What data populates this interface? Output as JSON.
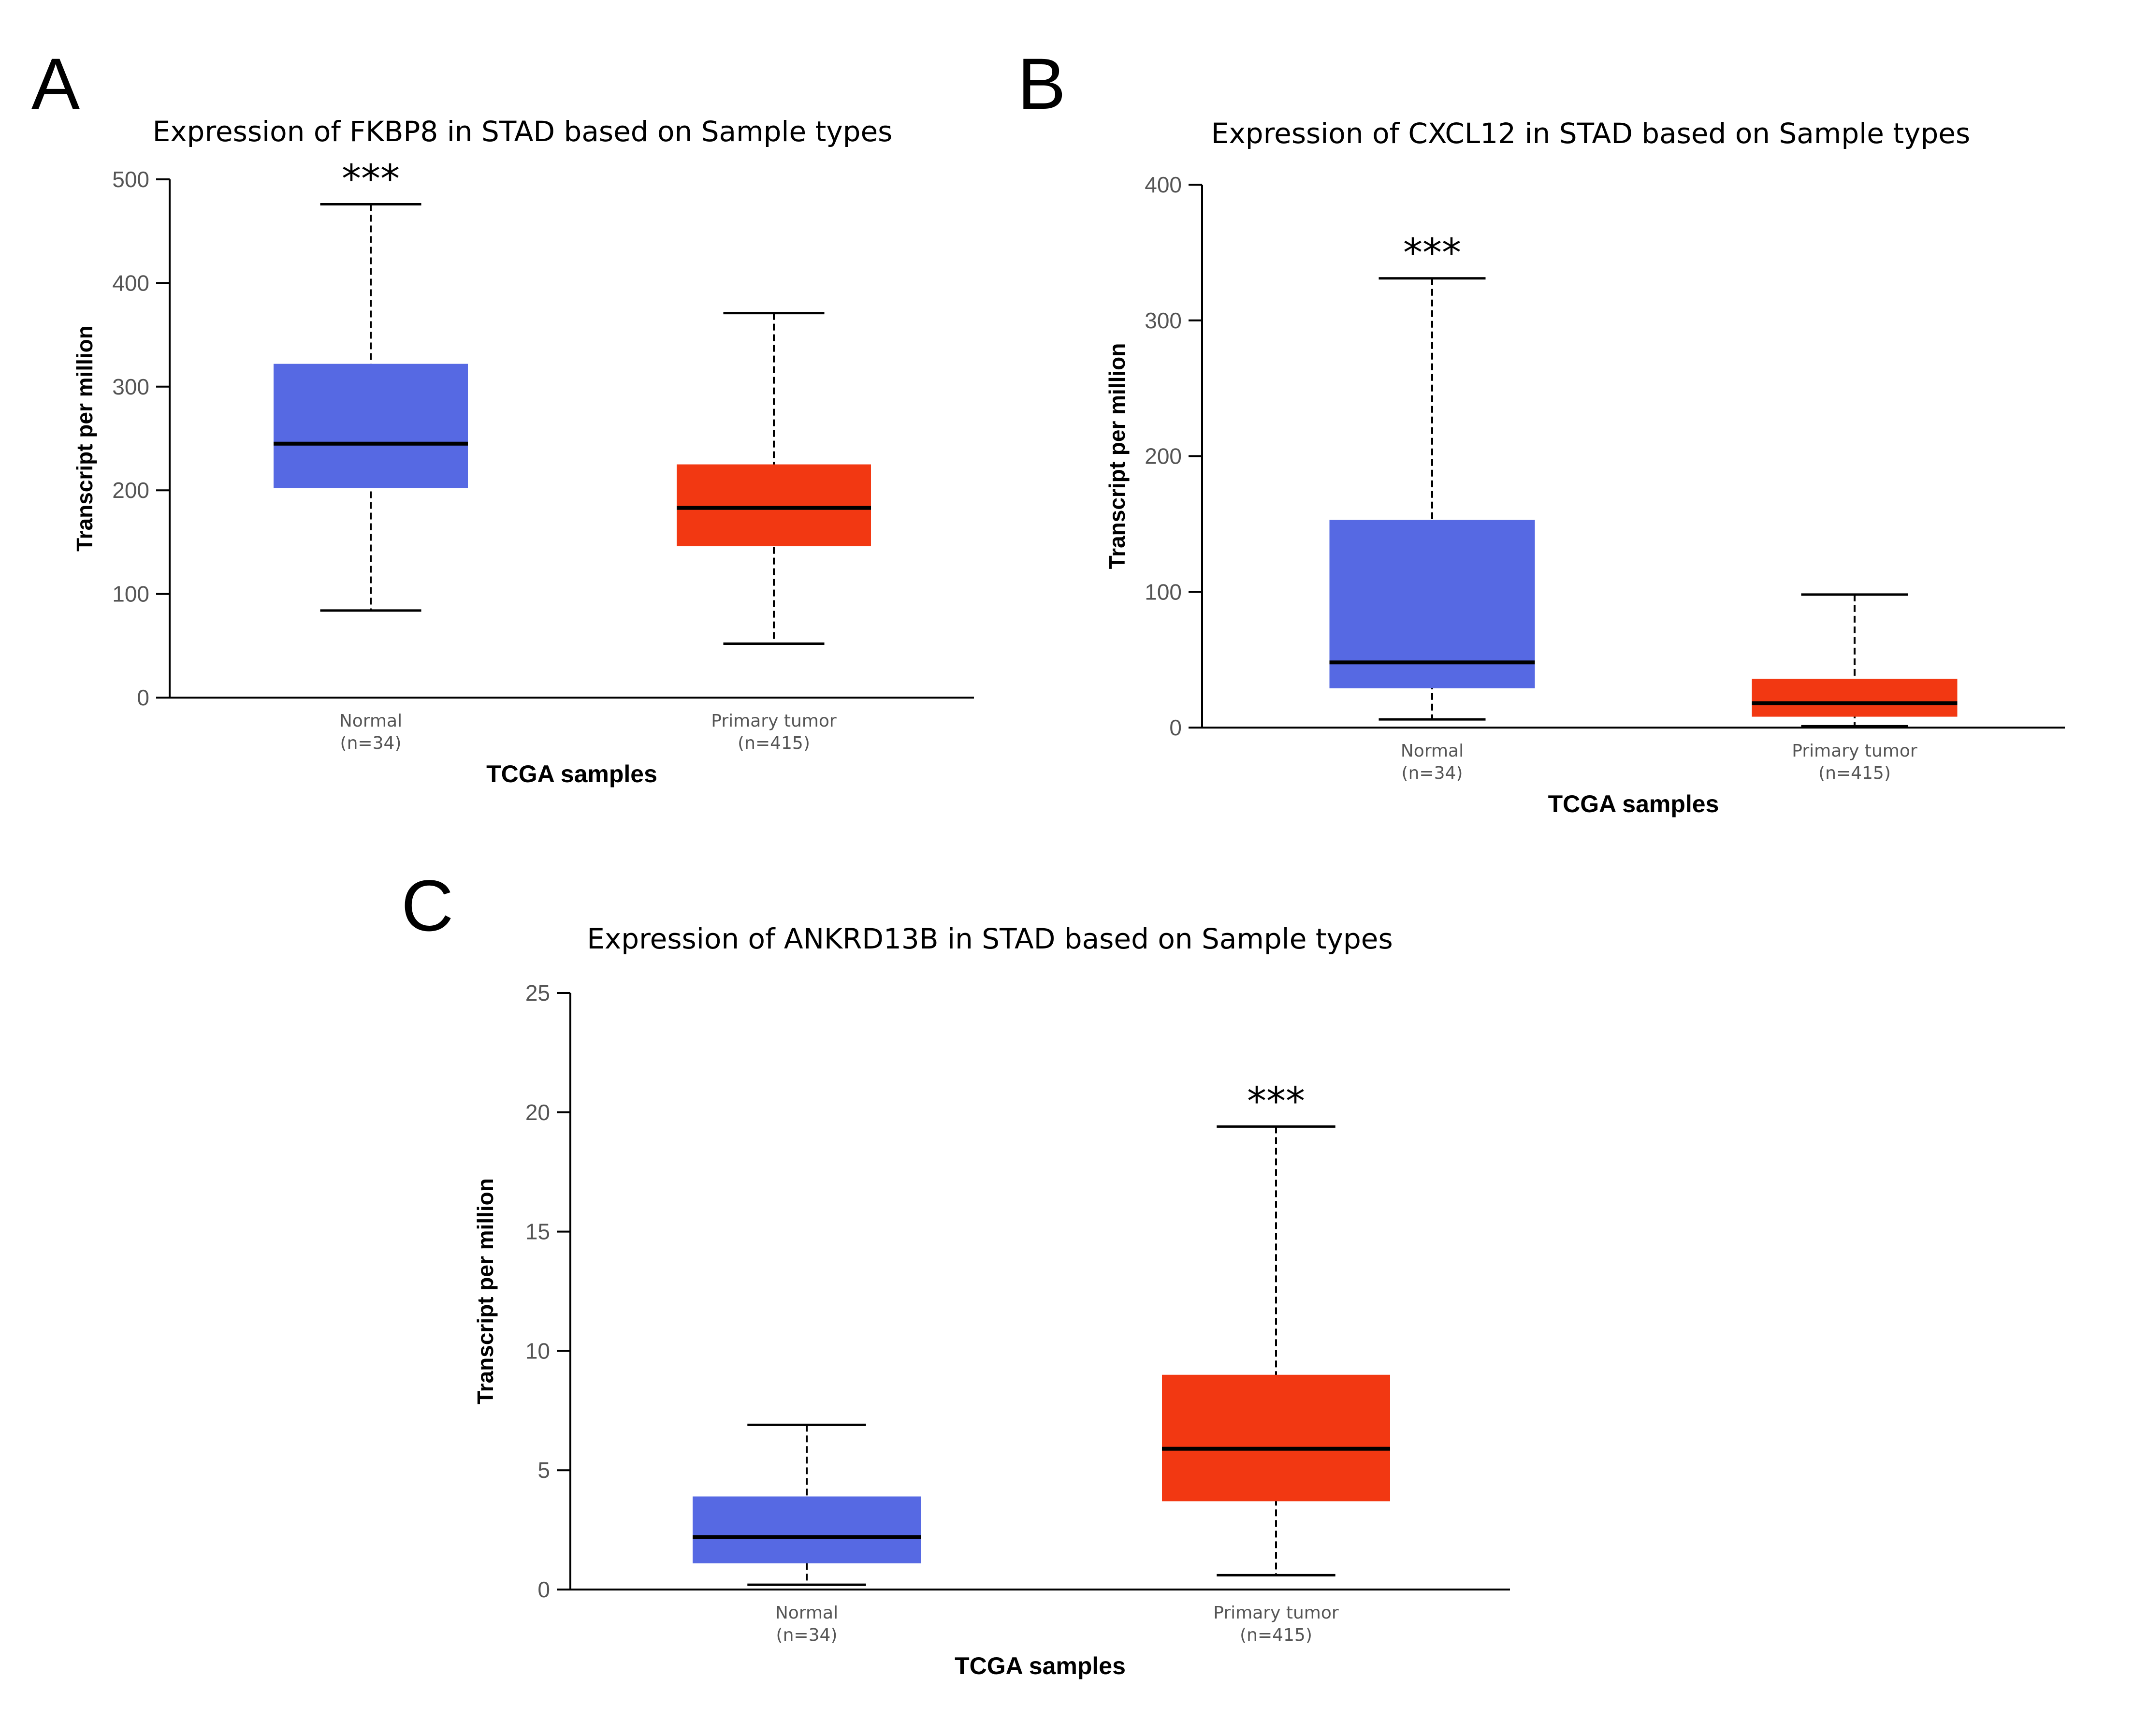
{
  "colors": {
    "normal": "#5669e3",
    "tumor": "#f23812"
  },
  "chart_data": [
    {
      "panel": "A",
      "type": "box",
      "title": "Expression of FKBP8 in STAD based on Sample types",
      "xlabel": "TCGA samples",
      "ylabel": "Transcript per million",
      "ylim": [
        0,
        500
      ],
      "yticks": [
        0,
        100,
        200,
        300,
        400,
        500
      ],
      "significance": {
        "label": "***",
        "group": 0
      },
      "groups": [
        {
          "name": "Normal",
          "n_label": "(n=34)",
          "min": 84,
          "q1": 202,
          "median": 245,
          "q3": 322,
          "max": 476
        },
        {
          "name": "Primary tumor",
          "n_label": "(n=415)",
          "min": 52,
          "q1": 146,
          "median": 183,
          "q3": 225,
          "max": 371
        }
      ]
    },
    {
      "panel": "B",
      "type": "box",
      "title": "Expression of CXCL12 in STAD based on Sample types",
      "xlabel": "TCGA samples",
      "ylabel": "Transcript per million",
      "ylim": [
        0,
        400
      ],
      "yticks": [
        0,
        100,
        200,
        300,
        400
      ],
      "significance": {
        "label": "***",
        "group": 0
      },
      "groups": [
        {
          "name": "Normal",
          "n_label": "(n=34)",
          "min": 6,
          "q1": 29,
          "median": 48,
          "q3": 153,
          "max": 331
        },
        {
          "name": "Primary tumor",
          "n_label": "(n=415)",
          "min": 1,
          "q1": 8,
          "median": 18,
          "q3": 36,
          "max": 98
        }
      ]
    },
    {
      "panel": "C",
      "type": "box",
      "title": "Expression of ANKRD13B in STAD based on Sample types",
      "xlabel": "TCGA samples",
      "ylabel": "Transcript per million",
      "ylim": [
        0,
        25
      ],
      "yticks": [
        0,
        5,
        10,
        15,
        20,
        25
      ],
      "significance": {
        "label": "***",
        "group": 1
      },
      "groups": [
        {
          "name": "Normal",
          "n_label": "(n=34)",
          "min": 0.2,
          "q1": 1.1,
          "median": 2.2,
          "q3": 3.9,
          "max": 6.9
        },
        {
          "name": "Primary tumor",
          "n_label": "(n=415)",
          "min": 0.6,
          "q1": 3.7,
          "median": 5.9,
          "q3": 9.0,
          "max": 19.4
        }
      ]
    }
  ]
}
